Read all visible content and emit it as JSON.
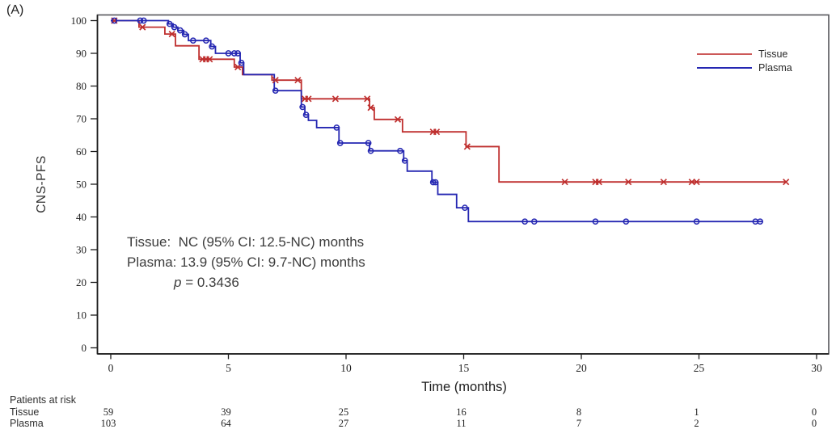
{
  "panel_label": "(A)",
  "colors": {
    "tissue": "#bf2f2e",
    "plasma": "#2527b2",
    "frame": "#55555a",
    "axis": "#1c1c1c",
    "text": "#2e2e2e"
  },
  "y_axis": {
    "label": "CNS-PFS",
    "ticks": [
      0,
      10,
      20,
      30,
      40,
      50,
      60,
      70,
      80,
      90,
      100
    ],
    "min": 0,
    "max": 100
  },
  "x_axis": {
    "label": "Time (months)",
    "ticks": [
      0,
      5,
      10,
      15,
      20,
      25,
      30
    ],
    "min": 0,
    "max": 30
  },
  "legend": {
    "items": [
      {
        "label": "Tissue",
        "color": "#bf2f2e"
      },
      {
        "label": "Plasma",
        "color": "#2527b2"
      }
    ]
  },
  "annotation": {
    "line1": "Tissue:  NC (95% CI: 12.5-NC) months",
    "line2": "Plasma: 13.9 (95% CI: 9.7-NC) months",
    "p_italic": "p",
    "p_rest": " = 0.3436"
  },
  "risk_table": {
    "title": "Patients at risk",
    "time_points": [
      0,
      5,
      10,
      15,
      20,
      25,
      30
    ],
    "rows": [
      {
        "label": "Tissue",
        "values": [
          "59",
          "39",
          "25",
          "16",
          "8",
          "1",
          "0"
        ]
      },
      {
        "label": "Plasma",
        "values": [
          "103",
          "64",
          "27",
          "11",
          "7",
          "2",
          "0"
        ]
      }
    ]
  },
  "chart_data": {
    "type": "line",
    "subtype": "kaplan-meier-step",
    "title": "",
    "xlabel": "Time (months)",
    "ylabel": "CNS-PFS",
    "xlim": [
      0,
      30
    ],
    "ylim": [
      0,
      100
    ],
    "grid": false,
    "legend_position": "top-right",
    "median_summary": {
      "tissue_months": "NC (95% CI: 12.5-NC)",
      "plasma_months": "13.9 (95% CI: 9.7-NC)",
      "p_value": 0.3436
    },
    "series": [
      {
        "name": "Tissue",
        "color": "#bf2f2e",
        "marker": "x",
        "steps": [
          [
            0,
            100
          ],
          [
            1.2,
            98
          ],
          [
            2.3,
            95.9
          ],
          [
            2.75,
            92.3
          ],
          [
            3.75,
            88.2
          ],
          [
            5.25,
            85.8
          ],
          [
            5.6,
            83.5
          ],
          [
            6.85,
            81.8
          ],
          [
            8.1,
            76.1
          ],
          [
            11.0,
            73.4
          ],
          [
            11.2,
            69.8
          ],
          [
            12.4,
            66
          ],
          [
            15.1,
            61.5
          ],
          [
            16.5,
            50.7
          ]
        ],
        "end_time": 28.7,
        "censors": [
          [
            0.15,
            100
          ],
          [
            1.35,
            98
          ],
          [
            2.6,
            95.9
          ],
          [
            3.9,
            88.2
          ],
          [
            4.05,
            88.2
          ],
          [
            4.2,
            88.2
          ],
          [
            5.4,
            85.8
          ],
          [
            7.0,
            81.8
          ],
          [
            7.95,
            81.8
          ],
          [
            8.25,
            76.1
          ],
          [
            8.4,
            76.1
          ],
          [
            9.55,
            76.1
          ],
          [
            10.9,
            76.1
          ],
          [
            11.05,
            73.4
          ],
          [
            12.2,
            69.8
          ],
          [
            13.7,
            66
          ],
          [
            13.85,
            66
          ],
          [
            15.15,
            61.5
          ],
          [
            19.3,
            50.7
          ],
          [
            20.6,
            50.7
          ],
          [
            20.75,
            50.7
          ],
          [
            22.0,
            50.7
          ],
          [
            23.5,
            50.7
          ],
          [
            24.7,
            50.7
          ],
          [
            24.9,
            50.7
          ],
          [
            28.7,
            50.7
          ]
        ]
      },
      {
        "name": "Plasma",
        "color": "#2527b2",
        "marker": "circle",
        "steps": [
          [
            0,
            100
          ],
          [
            2.45,
            99
          ],
          [
            2.65,
            98
          ],
          [
            2.85,
            97
          ],
          [
            3.1,
            95.8
          ],
          [
            3.3,
            93.9
          ],
          [
            4.25,
            92.1
          ],
          [
            4.45,
            90
          ],
          [
            5.5,
            87.1
          ],
          [
            5.65,
            83.5
          ],
          [
            6.95,
            78.6
          ],
          [
            8.1,
            73.6
          ],
          [
            8.25,
            71.2
          ],
          [
            8.4,
            69.5
          ],
          [
            8.75,
            67.3
          ],
          [
            9.7,
            62.6
          ],
          [
            11.0,
            60.2
          ],
          [
            12.45,
            57.2
          ],
          [
            12.6,
            54
          ],
          [
            13.65,
            50.6
          ],
          [
            13.9,
            46.9
          ],
          [
            14.7,
            42.8
          ],
          [
            15.2,
            38.6
          ]
        ],
        "end_time": 27.7,
        "censors": [
          [
            0.15,
            100
          ],
          [
            1.25,
            100
          ],
          [
            1.4,
            100
          ],
          [
            2.5,
            99
          ],
          [
            2.7,
            98
          ],
          [
            2.95,
            97
          ],
          [
            3.15,
            95.8
          ],
          [
            3.5,
            93.9
          ],
          [
            4.05,
            93.9
          ],
          [
            4.3,
            92.1
          ],
          [
            5.0,
            90
          ],
          [
            5.25,
            90
          ],
          [
            5.4,
            90
          ],
          [
            5.55,
            87.1
          ],
          [
            7.0,
            78.6
          ],
          [
            8.15,
            73.6
          ],
          [
            8.3,
            71.2
          ],
          [
            9.6,
            67.3
          ],
          [
            9.75,
            62.6
          ],
          [
            10.95,
            62.6
          ],
          [
            11.05,
            60.2
          ],
          [
            12.3,
            60.2
          ],
          [
            12.5,
            57.2
          ],
          [
            13.7,
            50.6
          ],
          [
            13.8,
            50.6
          ],
          [
            15.05,
            42.8
          ],
          [
            17.6,
            38.6
          ],
          [
            18.0,
            38.6
          ],
          [
            20.6,
            38.6
          ],
          [
            21.9,
            38.6
          ],
          [
            24.9,
            38.6
          ],
          [
            27.4,
            38.6
          ],
          [
            27.6,
            38.6
          ]
        ]
      }
    ]
  }
}
